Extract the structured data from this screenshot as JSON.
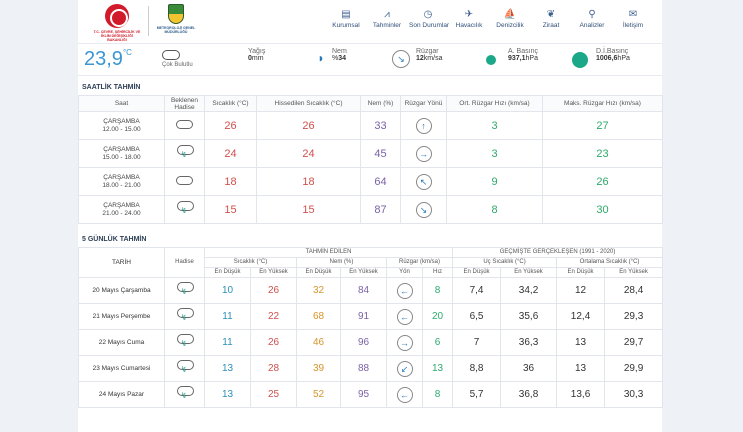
{
  "header": {
    "logo1_caption": "T.C. ÇEVRE, ŞEHİRCİLİK VE İKLİM DEĞİŞİKLİĞİ BAKANLIĞI",
    "logo2_caption": "METEOROLOJİ GENEL MÜDÜRLÜĞÜ",
    "nav": [
      {
        "label": "Kurumsal",
        "icon": "building-icon"
      },
      {
        "label": "Tahminler",
        "icon": "chart-icon"
      },
      {
        "label": "Son Durumlar",
        "icon": "clock-icon"
      },
      {
        "label": "Havacılık",
        "icon": "plane-icon"
      },
      {
        "label": "Denizcilik",
        "icon": "sailboat-icon"
      },
      {
        "label": "Ziraat",
        "icon": "leaf-icon"
      },
      {
        "label": "Analizler",
        "icon": "search-icon"
      },
      {
        "label": "İletişim",
        "icon": "envelope-icon"
      }
    ]
  },
  "current": {
    "temp": "23,9",
    "temp_unit": "°C",
    "condition": "Çok Bulutlu",
    "rain_label": "Yağış",
    "rain_value": "0",
    "rain_unit": "mm",
    "humidity_label": "Nem",
    "humidity_prefix": "%",
    "humidity_value": "34",
    "wind_label": "Rüzgar",
    "wind_value": "12",
    "wind_unit": "km/sa",
    "pressure_label": "A. Basınç",
    "pressure_value": "937,1",
    "pressure_unit": "hPa",
    "sea_pressure_label": "D.İ.Basınç",
    "sea_pressure_value": "1006,6",
    "sea_pressure_unit": "hPa"
  },
  "hourly": {
    "title": "SAATLİK TAHMİN",
    "headers": [
      "Saat",
      "Beklenen Hadise",
      "Sıcaklık (°C)",
      "Hissedilen Sıcaklık (°C)",
      "Nem (%)",
      "Rüzgar Yönü",
      "Ort. Rüzgar Hızı (km/sa)",
      "Maks. Rüzgar Hızı (km/sa)"
    ],
    "rows": [
      {
        "day": "ÇARŞAMBA",
        "time": "12.00 - 15.00",
        "event": "cloud",
        "temp": "26",
        "feel": "26",
        "hum": "33",
        "dir": "↑",
        "avg": "3",
        "max": "27"
      },
      {
        "day": "ÇARŞAMBA",
        "time": "15.00 - 18.00",
        "event": "rain",
        "temp": "24",
        "feel": "24",
        "hum": "45",
        "dir": "→",
        "avg": "3",
        "max": "23"
      },
      {
        "day": "ÇARŞAMBA",
        "time": "18.00 - 21.00",
        "event": "cloud",
        "temp": "18",
        "feel": "18",
        "hum": "64",
        "dir": "↖",
        "avg": "9",
        "max": "26"
      },
      {
        "day": "ÇARŞAMBA",
        "time": "21.00 - 24.00",
        "event": "rain",
        "temp": "15",
        "feel": "15",
        "hum": "87",
        "dir": "↘",
        "avg": "8",
        "max": "30"
      }
    ]
  },
  "daily": {
    "title": "5 GÜNLÜK TAHMİN",
    "group_forecast": "TAHMİN EDİLEN",
    "group_past": "GEÇMİŞTE GERÇEKLEŞEN (1991 - 2020)",
    "col_date": "TARİH",
    "col_event": "Hadise",
    "col_temp": "Sıcaklık (°C)",
    "col_hum": "Nem (%)",
    "col_wind": "Rüzgar (km/sa)",
    "col_extreme": "Uç Sıcaklık (°C)",
    "col_avg": "Ortalama Sıcaklık (°C)",
    "lo": "En Düşük",
    "hi": "En Yüksek",
    "dir": "Yön",
    "speed": "Hız",
    "rows": [
      {
        "date": "20 Mayıs Çarşamba",
        "tlo": "10",
        "thi": "26",
        "hlo": "32",
        "hhi": "84",
        "dir": "←",
        "spd": "8",
        "elo": "7,4",
        "ehi": "34,2",
        "alo": "12",
        "ahi": "28,4"
      },
      {
        "date": "21 Mayıs Perşembe",
        "tlo": "11",
        "thi": "22",
        "hlo": "68",
        "hhi": "91",
        "dir": "←",
        "spd": "20",
        "elo": "6,5",
        "ehi": "35,6",
        "alo": "12,4",
        "ahi": "29,3"
      },
      {
        "date": "22 Mayıs Cuma",
        "tlo": "11",
        "thi": "26",
        "hlo": "46",
        "hhi": "96",
        "dir": "→",
        "spd": "6",
        "elo": "7",
        "ehi": "36,3",
        "alo": "13",
        "ahi": "29,7"
      },
      {
        "date": "23 Mayıs Cumartesi",
        "tlo": "13",
        "thi": "28",
        "hlo": "39",
        "hhi": "88",
        "dir": "↙",
        "spd": "13",
        "elo": "8,8",
        "ehi": "36",
        "alo": "13",
        "ahi": "29,9"
      },
      {
        "date": "24 Mayıs Pazar",
        "tlo": "13",
        "thi": "25",
        "hlo": "52",
        "hhi": "95",
        "dir": "←",
        "spd": "8",
        "elo": "5,7",
        "ehi": "36,8",
        "alo": "13,6",
        "ahi": "30,3"
      }
    ]
  }
}
